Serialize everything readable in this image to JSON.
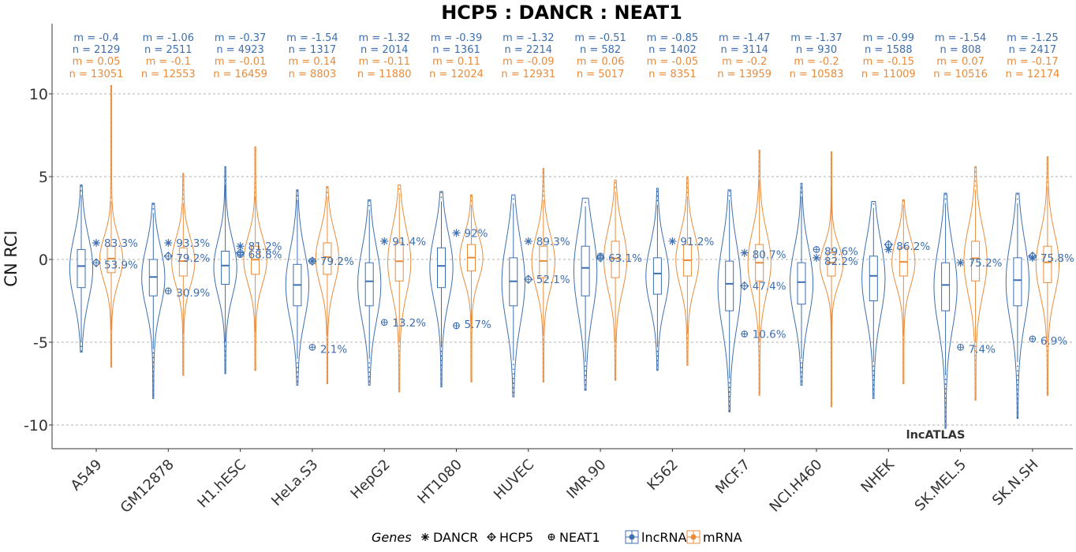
{
  "chart_data": {
    "type": "violin",
    "title": "HCP5 : DANCR : NEAT1",
    "ylabel": "CN RCI",
    "xlabel": "",
    "ylim": [
      -11.5,
      13.6
    ],
    "yticks": [
      10,
      5,
      0,
      -5,
      -10
    ],
    "ytick_labels": [
      "10",
      "5",
      "0",
      "-5",
      "-10"
    ],
    "grid": "horizontal dashed",
    "watermark": "lncATLAS",
    "colors": {
      "lncRNA": "#3d6fb0",
      "mRNA": "#ea8b3a",
      "grid": "#999999",
      "axis": "#333333"
    },
    "legend": {
      "position": "bottom",
      "genes_title": "Genes",
      "genes": [
        {
          "symbol": "✳",
          "name": "DANCR"
        },
        {
          "symbol": "⌖",
          "name": "HCP5"
        },
        {
          "symbol": "⊕",
          "name": "NEAT1"
        }
      ],
      "types": [
        "lncRNA",
        "mRNA"
      ]
    },
    "cell_lines": [
      {
        "name": "A549",
        "lnc": {
          "m_label": "m = -0.4",
          "n_label": "n = 2129",
          "median": -0.4,
          "q1": -1.7,
          "q3": 0.6,
          "wlo": -5.0,
          "whi": 3.9,
          "min": -5.6,
          "max": 4.5
        },
        "mrna": {
          "m_label": "m = 0.05",
          "n_label": "n = 13051",
          "median": 0.05,
          "q1": -0.8,
          "q3": 0.8,
          "wlo": -4.3,
          "whi": 3.5,
          "min": -6.5,
          "max": 10.5
        },
        "genes": {
          "DANCR": 1.0,
          "HCP5": -0.2,
          "NEAT1": null
        },
        "labels": [
          {
            "text": "83.3%",
            "y": 1.0
          },
          {
            "text": "53.9%",
            "y": -0.3
          }
        ]
      },
      {
        "name": "GM12878",
        "lnc": {
          "m_label": "m = -1.06",
          "n_label": "n = 2511",
          "median": -1.06,
          "q1": -2.2,
          "q3": 0.0,
          "wlo": -5.4,
          "whi": 2.8,
          "min": -8.4,
          "max": 3.4
        },
        "mrna": {
          "m_label": "m = -0.1",
          "n_label": "n = 12553",
          "median": -0.1,
          "q1": -1.0,
          "q3": 0.7,
          "wlo": -4.5,
          "whi": 3.4,
          "min": -7.0,
          "max": 5.2
        },
        "genes": {
          "DANCR": 1.0,
          "HCP5": 0.2,
          "NEAT1": -1.9
        },
        "labels": [
          {
            "text": "93.3%",
            "y": 1.0
          },
          {
            "text": "79.2%",
            "y": 0.1
          },
          {
            "text": "30.9%",
            "y": -2.0
          }
        ]
      },
      {
        "name": "H1.hESC",
        "lnc": {
          "m_label": "m = -0.37",
          "n_label": "n = 4923",
          "median": -0.37,
          "q1": -1.5,
          "q3": 0.5,
          "wlo": -5.0,
          "whi": 4.5,
          "min": -6.9,
          "max": 5.6
        },
        "mrna": {
          "m_label": "m = -0.01",
          "n_label": "n = 16459",
          "median": -0.01,
          "q1": -0.9,
          "q3": 0.8,
          "wlo": -4.4,
          "whi": 3.8,
          "min": -6.7,
          "max": 6.8
        },
        "genes": {
          "DANCR": 0.8,
          "HCP5": 0.4,
          "NEAT1": 0.3
        },
        "labels": [
          {
            "text": "81.2%",
            "y": 0.8
          },
          {
            "text": "68.8%",
            "y": 0.3
          }
        ]
      },
      {
        "name": "HeLa.S3",
        "lnc": {
          "m_label": "m = -1.54",
          "n_label": "n = 1317",
          "median": -1.54,
          "q1": -2.8,
          "q3": -0.3,
          "wlo": -6.0,
          "whi": 3.6,
          "min": -7.6,
          "max": 4.2
        },
        "mrna": {
          "m_label": "m = 0.14",
          "n_label": "n = 8803",
          "median": 0.14,
          "q1": -0.9,
          "q3": 1.0,
          "wlo": -4.6,
          "whi": 3.8,
          "min": -7.5,
          "max": 4.4
        },
        "genes": {
          "DANCR": -0.1,
          "HCP5": -0.1,
          "NEAT1": -5.3
        },
        "labels": [
          {
            "text": "79.2%",
            "y": -0.1
          },
          {
            "text": "2.1%",
            "y": -5.4
          }
        ]
      },
      {
        "name": "HepG2",
        "lnc": {
          "m_label": "m = -1.32",
          "n_label": "n = 2014",
          "median": -1.32,
          "q1": -2.8,
          "q3": -0.2,
          "wlo": -6.0,
          "whi": 3.0,
          "min": -7.6,
          "max": 3.6
        },
        "mrna": {
          "m_label": "m = -0.11",
          "n_label": "n = 11880",
          "median": -0.11,
          "q1": -1.3,
          "q3": 1.0,
          "wlo": -5.0,
          "whi": 4.0,
          "min": -8.0,
          "max": 4.5
        },
        "genes": {
          "DANCR": 1.1,
          "HCP5": null,
          "NEAT1": -3.8
        },
        "labels": [
          {
            "text": "91.4%",
            "y": 1.1
          },
          {
            "text": "13.2%",
            "y": -3.8
          }
        ]
      },
      {
        "name": "HT1080",
        "lnc": {
          "m_label": "m = -0.39",
          "n_label": "n = 1361",
          "median": -0.39,
          "q1": -1.7,
          "q3": 0.7,
          "wlo": -5.3,
          "whi": 3.5,
          "min": -7.7,
          "max": 4.1
        },
        "mrna": {
          "m_label": "m = 0.11",
          "n_label": "n = 12024",
          "median": 0.11,
          "q1": -0.7,
          "q3": 0.9,
          "wlo": -4.2,
          "whi": 3.3,
          "min": -7.4,
          "max": 3.9
        },
        "genes": {
          "DANCR": 1.6,
          "HCP5": null,
          "NEAT1": -4.0
        },
        "labels": [
          {
            "text": "92%",
            "y": 1.6
          },
          {
            "text": "5.7%",
            "y": -3.9
          }
        ]
      },
      {
        "name": "HUVEC",
        "lnc": {
          "m_label": "m = -1.32",
          "n_label": "n = 2214",
          "median": -1.32,
          "q1": -2.8,
          "q3": 0.1,
          "wlo": -6.1,
          "whi": 3.4,
          "min": -8.3,
          "max": 3.9
        },
        "mrna": {
          "m_label": "m = -0.09",
          "n_label": "n = 12931",
          "median": -0.09,
          "q1": -1.1,
          "q3": 0.8,
          "wlo": -4.6,
          "whi": 3.6,
          "min": -7.4,
          "max": 5.5
        },
        "genes": {
          "DANCR": 1.1,
          "HCP5": -1.2,
          "NEAT1": null
        },
        "labels": [
          {
            "text": "89.3%",
            "y": 1.1
          },
          {
            "text": "52.1%",
            "y": -1.2
          }
        ]
      },
      {
        "name": "IMR.90",
        "lnc": {
          "m_label": "m = -0.51",
          "n_label": "n = 582",
          "median": -0.51,
          "q1": -2.2,
          "q3": 0.8,
          "wlo": -6.2,
          "whi": 3.2,
          "min": -7.9,
          "max": 3.7
        },
        "mrna": {
          "m_label": "m = 0.06",
          "n_label": "n = 5017",
          "median": 0.06,
          "q1": -1.1,
          "q3": 1.1,
          "wlo": -5.0,
          "whi": 4.1,
          "min": -7.3,
          "max": 4.8
        },
        "genes": {
          "DANCR": null,
          "HCP5": 0.1,
          "NEAT1": 0.2
        },
        "labels": [
          {
            "text": "63.1%",
            "y": 0.1
          }
        ]
      },
      {
        "name": "K562",
        "lnc": {
          "m_label": "m = -0.85",
          "n_label": "n = 1402",
          "median": -0.85,
          "q1": -2.1,
          "q3": 0.1,
          "wlo": -5.3,
          "whi": 3.3,
          "min": -6.7,
          "max": 4.3
        },
        "mrna": {
          "m_label": "m = -0.05",
          "n_label": "n = 8351",
          "median": -0.05,
          "q1": -1.0,
          "q3": 0.9,
          "wlo": -4.5,
          "whi": 3.8,
          "min": -6.4,
          "max": 5.0
        },
        "genes": {
          "DANCR": 1.1,
          "HCP5": null,
          "NEAT1": null
        },
        "labels": [
          {
            "text": "91.2%",
            "y": 1.1
          }
        ]
      },
      {
        "name": "MCF.7",
        "lnc": {
          "m_label": "m = -1.47",
          "n_label": "n = 3114",
          "median": -1.47,
          "q1": -3.1,
          "q3": -0.1,
          "wlo": -7.2,
          "whi": 3.6,
          "min": -9.2,
          "max": 4.2
        },
        "mrna": {
          "m_label": "m = -0.2",
          "n_label": "n = 13959",
          "median": -0.2,
          "q1": -1.3,
          "q3": 0.9,
          "wlo": -5.0,
          "whi": 4.8,
          "min": -8.2,
          "max": 6.6
        },
        "genes": {
          "DANCR": 0.4,
          "HCP5": -1.6,
          "NEAT1": -4.5
        },
        "labels": [
          {
            "text": "80.7%",
            "y": 0.3
          },
          {
            "text": "47.4%",
            "y": -1.6
          },
          {
            "text": "10.6%",
            "y": -4.5
          }
        ]
      },
      {
        "name": "NCI.H460",
        "lnc": {
          "m_label": "m = -1.37",
          "n_label": "n = 930",
          "median": -1.37,
          "q1": -2.7,
          "q3": -0.2,
          "wlo": -6.0,
          "whi": 3.8,
          "min": -7.6,
          "max": 4.6
        },
        "mrna": {
          "m_label": "m = -0.2",
          "n_label": "n = 10583",
          "median": -0.2,
          "q1": -1.0,
          "q3": 0.4,
          "wlo": -4.8,
          "whi": 4.4,
          "min": -8.9,
          "max": 6.5
        },
        "genes": {
          "DANCR": 0.1,
          "HCP5": null,
          "NEAT1": 0.6
        },
        "labels": [
          {
            "text": "89.6%",
            "y": 0.5
          },
          {
            "text": "82.2%",
            "y": -0.1
          }
        ]
      },
      {
        "name": "NHEK",
        "lnc": {
          "m_label": "m = -0.99",
          "n_label": "n = 1588",
          "median": -0.99,
          "q1": -2.5,
          "q3": 0.2,
          "wlo": -6.2,
          "whi": 3.1,
          "min": -8.4,
          "max": 3.5
        },
        "mrna": {
          "m_label": "m = -0.15",
          "n_label": "n = 11009",
          "median": -0.15,
          "q1": -1.0,
          "q3": 0.7,
          "wlo": -4.6,
          "whi": 3.3,
          "min": -7.5,
          "max": 3.6
        },
        "genes": {
          "DANCR": 0.6,
          "HCP5": 0.9,
          "NEAT1": null
        },
        "labels": [
          {
            "text": "86.2%",
            "y": 0.8
          }
        ]
      },
      {
        "name": "SK.MEL.5",
        "lnc": {
          "m_label": "m = -1.54",
          "n_label": "n = 808",
          "median": -1.54,
          "q1": -3.1,
          "q3": -0.2,
          "wlo": -7.0,
          "whi": 3.4,
          "min": -10.2,
          "max": 4.0
        },
        "mrna": {
          "m_label": "m = 0.07",
          "n_label": "n = 10516",
          "median": 0.07,
          "q1": -1.3,
          "q3": 1.1,
          "wlo": -5.0,
          "whi": 4.2,
          "min": -8.5,
          "max": 5.6
        },
        "genes": {
          "DANCR": -0.2,
          "HCP5": null,
          "NEAT1": -5.3
        },
        "labels": [
          {
            "text": "75.2%",
            "y": -0.2
          },
          {
            "text": "7.4%",
            "y": -5.4
          }
        ]
      },
      {
        "name": "SK.N.SH",
        "lnc": {
          "m_label": "m = -1.25",
          "n_label": "n = 2417",
          "median": -1.25,
          "q1": -2.8,
          "q3": 0.1,
          "wlo": -6.2,
          "whi": 3.4,
          "min": -9.6,
          "max": 4.0
        },
        "mrna": {
          "m_label": "m = -0.17",
          "n_label": "n = 12174",
          "median": -0.17,
          "q1": -1.4,
          "q3": 0.8,
          "wlo": -5.0,
          "whi": 4.4,
          "min": -8.2,
          "max": 6.2
        },
        "genes": {
          "DANCR": 0.1,
          "HCP5": 0.2,
          "NEAT1": -4.8
        },
        "labels": [
          {
            "text": "75.8%",
            "y": 0.1
          },
          {
            "text": "6.9%",
            "y": -4.9
          }
        ]
      }
    ]
  }
}
